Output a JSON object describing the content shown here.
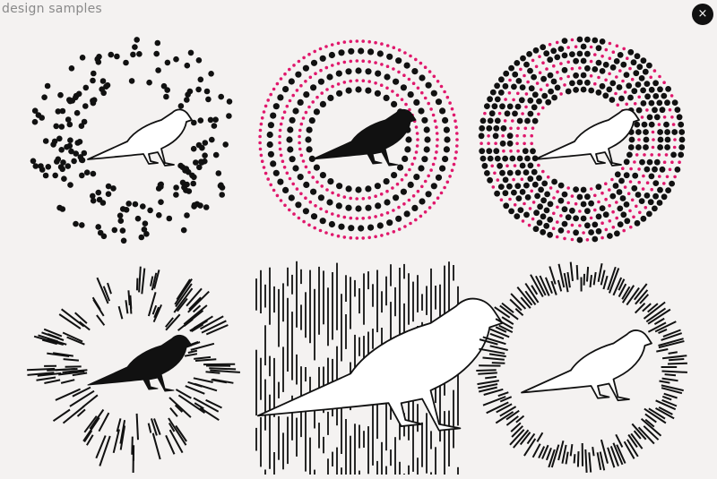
{
  "header": {
    "title": "design samples"
  },
  "close": {
    "glyph": "×"
  },
  "colors": {
    "background": "#f4f2f1",
    "ink": "#111111",
    "accent": "#e0186c"
  },
  "samples": [
    {
      "name": "scattered-dots",
      "bird": "outline"
    },
    {
      "name": "concentric-dot-rings",
      "bird": "filled"
    },
    {
      "name": "dense-dot-rings",
      "bird": "outline"
    },
    {
      "name": "radial-lines",
      "bird": "filled"
    },
    {
      "name": "vertical-lines",
      "bird": "outline-large"
    },
    {
      "name": "radial-line-ring",
      "bird": "outline"
    }
  ]
}
